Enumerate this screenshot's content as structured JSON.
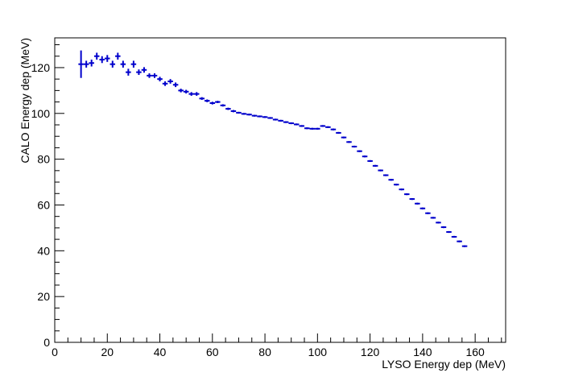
{
  "chart_data": {
    "type": "profile",
    "xlabel": "LYSO Energy dep (MeV)",
    "ylabel": "CALO Energy dep (MeV)",
    "color": "#0000cc",
    "x": [
      10,
      12,
      14,
      16,
      18,
      20,
      22,
      24,
      26,
      28,
      30,
      32,
      34,
      36,
      38,
      40,
      42,
      44,
      46,
      48,
      50,
      52,
      54,
      56,
      58,
      60,
      62,
      64,
      66,
      68,
      70,
      72,
      74,
      76,
      78,
      80,
      82,
      84,
      86,
      88,
      90,
      92,
      94,
      96,
      98,
      100,
      102,
      104,
      106,
      108,
      110,
      112,
      114,
      116,
      118,
      120,
      122,
      124,
      126,
      128,
      130,
      132,
      134,
      136,
      138,
      140,
      142,
      144,
      146,
      148,
      150,
      152,
      154,
      156
    ],
    "values": [
      121.5,
      121.5,
      122,
      125,
      123.5,
      124,
      121.5,
      125,
      121.5,
      118,
      121.5,
      118,
      119,
      116.5,
      116.5,
      115,
      113,
      114,
      112.5,
      110,
      109.5,
      108.5,
      108.5,
      106.5,
      105.5,
      104.5,
      105,
      103.5,
      102,
      101,
      100.3,
      99.8,
      99.5,
      99,
      98.7,
      98.4,
      98,
      97.3,
      96.8,
      96.2,
      95.7,
      95.2,
      94.5,
      93.5,
      93.3,
      93.3,
      94.5,
      94,
      93,
      91.5,
      89.5,
      87.5,
      85.5,
      83.5,
      81.2,
      79.2,
      77.1,
      75.1,
      73,
      71,
      68.9,
      66.8,
      64.7,
      62.6,
      60.6,
      58.5,
      56.4,
      54.4,
      52.3,
      50.3,
      48.2,
      46.1,
      44.1,
      42
    ],
    "errors": [
      6,
      1.5,
      1.5,
      1.5,
      1.5,
      1.5,
      1.5,
      1.5,
      1.5,
      1.5,
      1.5,
      1.2,
      1.2,
      1,
      1,
      1,
      1,
      1,
      1,
      0.8,
      0.8,
      0.8,
      0.8,
      0.6,
      0.6,
      0.6,
      0.5,
      0.5,
      0.5,
      0.5,
      0.4,
      0.4,
      0.4,
      0.4,
      0.4,
      0.4,
      0.4,
      0.4,
      0.4,
      0.4,
      0.4,
      0.4,
      0.4,
      0.4,
      0.4,
      0.4,
      0.4,
      0.4,
      0.4,
      0.4,
      0.4,
      0.4,
      0.4,
      0.4,
      0.4,
      0.4,
      0.4,
      0.4,
      0.4,
      0.4,
      0.4,
      0.4,
      0.4,
      0.4,
      0.4,
      0.4,
      0.4,
      0.4,
      0.4,
      0.4,
      0.4,
      0.4,
      0.4,
      0.4
    ],
    "xlim": [
      0,
      171.6
    ],
    "ylim": [
      0,
      133
    ],
    "xticks": [
      0,
      20,
      40,
      60,
      80,
      100,
      120,
      140,
      160
    ],
    "yticks": [
      0,
      20,
      40,
      60,
      80,
      100,
      120
    ]
  }
}
